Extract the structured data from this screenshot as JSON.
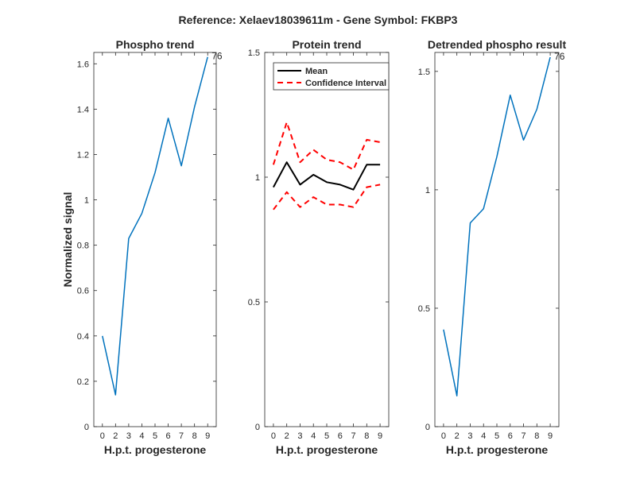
{
  "figure": {
    "suptitle": "Reference:  Xelaev18039611m - Gene Symbol:  FKBP3"
  },
  "colors": {
    "phospho": "#0072BD",
    "mean": "#000000",
    "ci": "#FF0000",
    "axis": "#262626"
  },
  "chart_data": [
    {
      "type": "line",
      "title": "Phospho trend",
      "xlabel": "H.p.t. progesterone",
      "ylabel": "Normalized signal",
      "categories": [
        "0",
        "2",
        "3",
        "4",
        "5",
        "6",
        "7",
        "8",
        "9"
      ],
      "series": [
        {
          "values": [
            0.4,
            0.14,
            0.83,
            0.94,
            1.12,
            1.36,
            1.15,
            1.41,
            1.63
          ]
        }
      ],
      "annotation": "76",
      "ylim": [
        0,
        1.65
      ],
      "yticks": [
        0,
        0.2,
        0.4,
        0.6,
        0.8,
        1,
        1.2,
        1.4,
        1.6
      ],
      "ytick_labels": [
        "0",
        "0.2",
        "0.4",
        "0.6",
        "0.8",
        "1",
        "1.2",
        "1.4",
        "1.6"
      ],
      "grid": false
    },
    {
      "type": "line",
      "title": "Protein trend",
      "xlabel": "H.p.t. progesterone",
      "ylabel": "",
      "categories": [
        "0",
        "2",
        "3",
        "4",
        "5",
        "6",
        "7",
        "8",
        "9"
      ],
      "series": [
        {
          "name": "Mean",
          "style": "solid",
          "values": [
            0.96,
            1.06,
            0.97,
            1.01,
            0.98,
            0.97,
            0.95,
            1.05,
            1.05
          ]
        },
        {
          "name": "Confidence Interval",
          "style": "dashed",
          "values": [
            1.05,
            1.22,
            1.06,
            1.11,
            1.07,
            1.06,
            1.03,
            1.15,
            1.14
          ]
        },
        {
          "style": "dashed",
          "values": [
            0.87,
            0.94,
            0.88,
            0.92,
            0.89,
            0.89,
            0.88,
            0.96,
            0.97
          ]
        }
      ],
      "legend": {
        "position": "top-left",
        "entries": [
          "Mean",
          "Confidence Interval"
        ]
      },
      "ylim": [
        0,
        1.5
      ],
      "yticks": [
        0,
        0.5,
        1,
        1.5
      ],
      "ytick_labels": [
        "0",
        "0.5",
        "1",
        "1.5"
      ],
      "grid": false
    },
    {
      "type": "line",
      "title": "Detrended phospho result",
      "xlabel": "H.p.t. progesterone",
      "ylabel": "",
      "categories": [
        "0",
        "2",
        "3",
        "4",
        "5",
        "6",
        "7",
        "8",
        "9"
      ],
      "series": [
        {
          "values": [
            0.41,
            0.13,
            0.86,
            0.92,
            1.14,
            1.4,
            1.21,
            1.34,
            1.56
          ]
        }
      ],
      "annotation": "76",
      "ylim": [
        0,
        1.58
      ],
      "yticks": [
        0,
        0.5,
        1,
        1.5
      ],
      "ytick_labels": [
        "0",
        "0.5",
        "1",
        "1.5"
      ],
      "grid": false
    }
  ]
}
